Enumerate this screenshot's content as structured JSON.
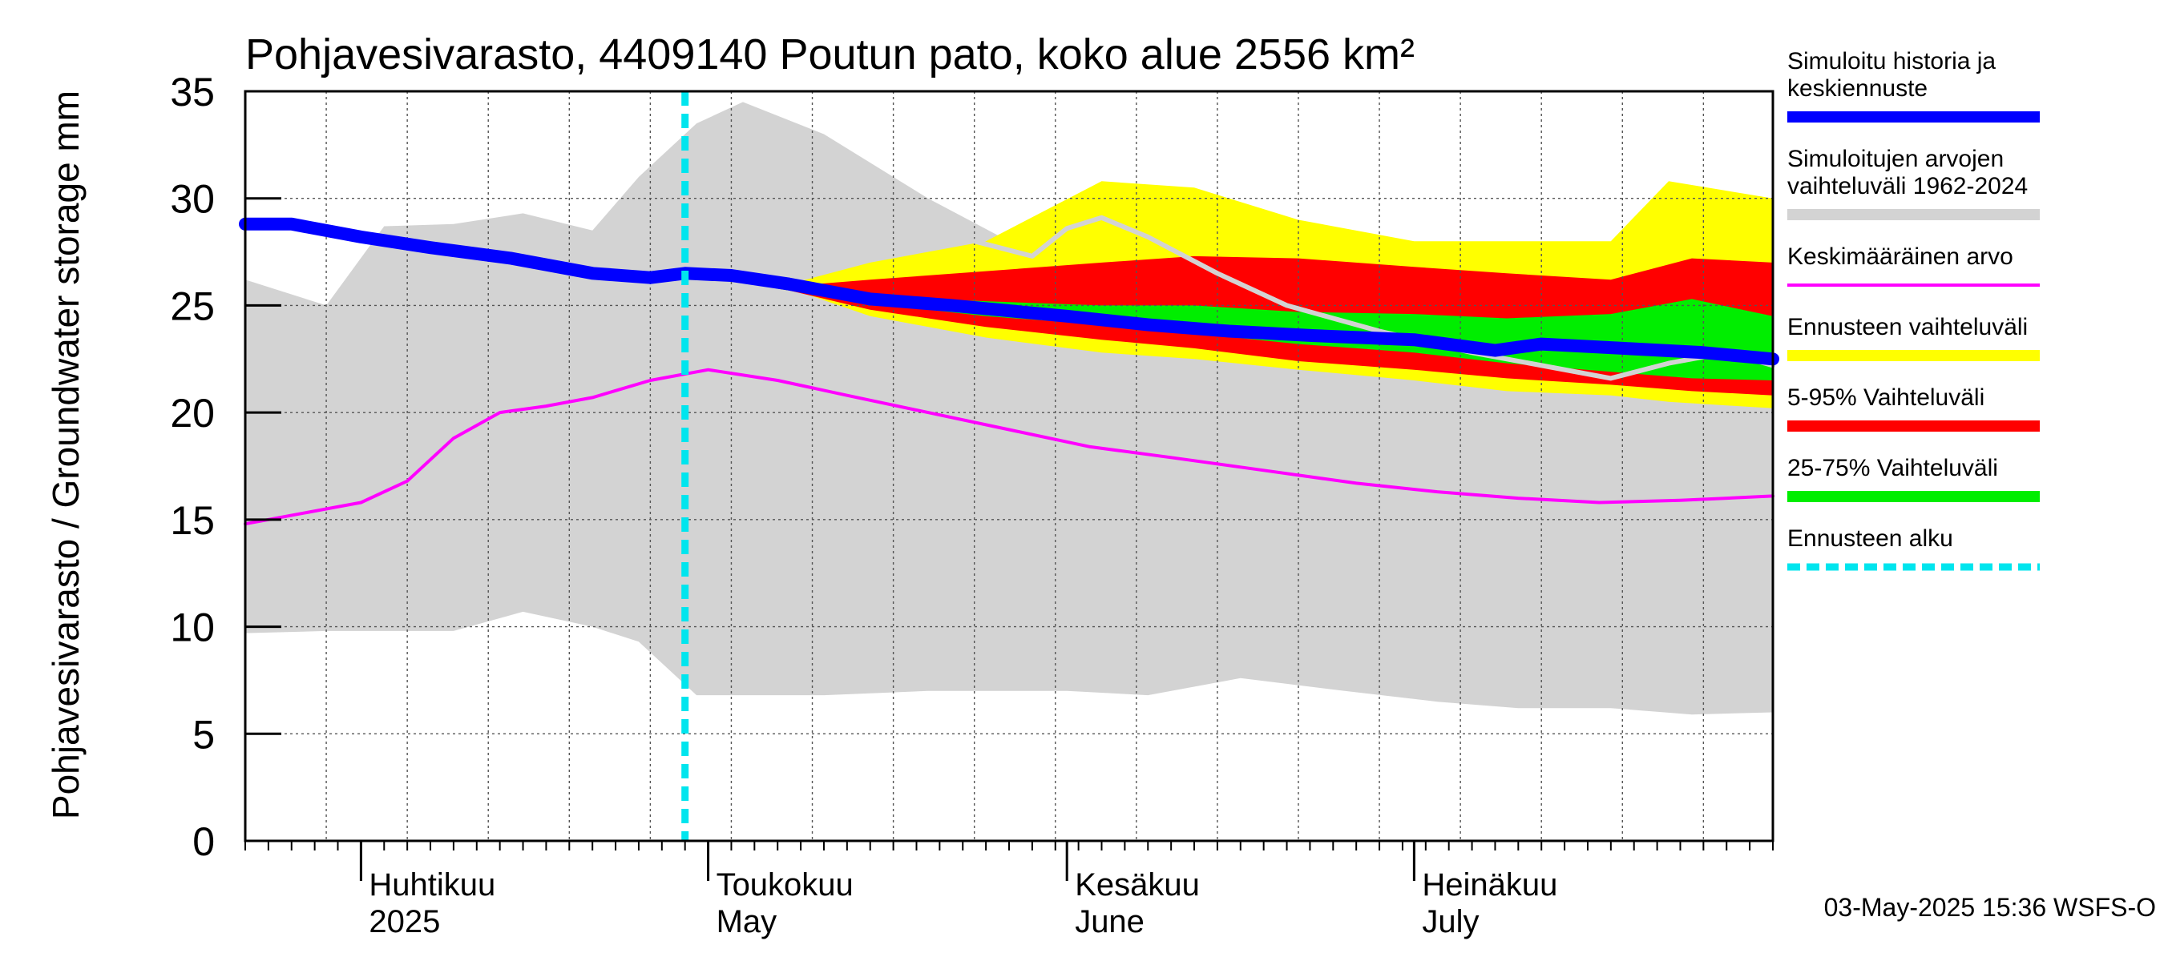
{
  "chart_data": {
    "type": "area",
    "title": "Pohjavesivarasto, 4409140 Poutun pato, koko alue 2556 km²",
    "ylabel": "Pohjavesivarasto / Groundwater storage   mm",
    "ylim": [
      0,
      35
    ],
    "y_ticks": [
      "0",
      "5",
      "10",
      "15",
      "20",
      "25",
      "30",
      "35"
    ],
    "xlim": [
      "2025-03-22",
      "2025-08-01"
    ],
    "grid": true,
    "legend_position": "right",
    "month_labels": [
      {
        "date": "2025-04-01",
        "fi": "Huhtikuu",
        "en": "2025"
      },
      {
        "date": "2025-05-01",
        "fi": "Toukokuu",
        "en": "May"
      },
      {
        "date": "2025-06-01",
        "fi": "Kesäkuu",
        "en": "June"
      },
      {
        "date": "2025-07-01",
        "fi": "Heinäkuu",
        "en": "July"
      }
    ],
    "forecast_start": "2025-04-29",
    "series": [
      {
        "name": "Simuloitujen arvojen vaihteluväli 1962-2024",
        "color": "#d3d3d3",
        "kind": "band",
        "x": [
          "2025-03-22",
          "2025-03-29",
          "2025-04-03",
          "2025-04-09",
          "2025-04-15",
          "2025-04-21",
          "2025-04-25",
          "2025-04-30",
          "2025-05-04",
          "2025-05-11",
          "2025-05-20",
          "2025-05-27",
          "2025-06-01",
          "2025-06-08",
          "2025-06-16",
          "2025-06-25",
          "2025-07-03",
          "2025-07-10",
          "2025-07-18",
          "2025-07-25",
          "2025-08-01"
        ],
        "upper": [
          26.2,
          25.0,
          28.7,
          28.8,
          29.3,
          28.5,
          31.0,
          33.5,
          34.5,
          33.0,
          30.0,
          28.0,
          27.2,
          27.0,
          26.5,
          25.0,
          23.5,
          22.5,
          22.5,
          22.0,
          21.8
        ],
        "lower": [
          9.7,
          9.8,
          9.8,
          9.8,
          10.7,
          10.0,
          9.3,
          6.8,
          6.8,
          6.8,
          7.0,
          7.0,
          7.0,
          6.8,
          7.6,
          7.0,
          6.5,
          6.2,
          6.2,
          5.9,
          6.0
        ]
      },
      {
        "name": "Ennusteen vaihteluväli",
        "color": "#ffff00",
        "kind": "band",
        "x": [
          "2025-04-29",
          "2025-05-08",
          "2025-05-15",
          "2025-05-25",
          "2025-06-04",
          "2025-06-12",
          "2025-06-21",
          "2025-07-01",
          "2025-07-09",
          "2025-07-18",
          "2025-07-23",
          "2025-08-01"
        ],
        "upper": [
          26.7,
          26.0,
          27.0,
          28.0,
          30.8,
          30.5,
          29.0,
          28.0,
          28.0,
          28.0,
          30.8,
          30.0
        ],
        "lower": [
          26.5,
          25.8,
          24.5,
          23.5,
          22.8,
          22.5,
          22.0,
          21.5,
          21.0,
          20.8,
          20.5,
          20.2
        ]
      },
      {
        "name": "5-95% Vaihteluväli",
        "color": "#ff0000",
        "kind": "band",
        "x": [
          "2025-04-29",
          "2025-05-08",
          "2025-05-15",
          "2025-05-25",
          "2025-06-04",
          "2025-06-12",
          "2025-06-21",
          "2025-07-01",
          "2025-07-09",
          "2025-07-18",
          "2025-07-25",
          "2025-08-01"
        ],
        "upper": [
          26.5,
          25.9,
          26.2,
          26.6,
          27.0,
          27.3,
          27.2,
          26.8,
          26.5,
          26.2,
          27.2,
          27.0
        ],
        "lower": [
          26.5,
          25.7,
          24.8,
          24.0,
          23.4,
          23.0,
          22.4,
          22.0,
          21.6,
          21.3,
          21.0,
          20.8
        ]
      },
      {
        "name": "25-75% Vaihteluväli",
        "color": "#00ee00",
        "kind": "band",
        "x": [
          "2025-04-29",
          "2025-05-08",
          "2025-05-15",
          "2025-05-25",
          "2025-06-04",
          "2025-06-12",
          "2025-06-21",
          "2025-07-01",
          "2025-07-09",
          "2025-07-18",
          "2025-07-25",
          "2025-08-01"
        ],
        "upper": [
          26.5,
          25.8,
          25.4,
          25.2,
          25.0,
          25.0,
          24.7,
          24.6,
          24.4,
          24.6,
          25.3,
          24.5
        ],
        "lower": [
          26.5,
          25.7,
          25.1,
          24.5,
          24.1,
          23.7,
          23.2,
          22.8,
          22.3,
          21.9,
          21.6,
          21.5
        ]
      },
      {
        "name": "Keskimääräinen arvo",
        "color": "#ff00ff",
        "kind": "line",
        "x": [
          "2025-03-22",
          "2025-03-27",
          "2025-04-01",
          "2025-04-05",
          "2025-04-09",
          "2025-04-13",
          "2025-04-17",
          "2025-04-21",
          "2025-04-26",
          "2025-05-01",
          "2025-05-07",
          "2025-05-13",
          "2025-05-20",
          "2025-05-27",
          "2025-06-03",
          "2025-06-10",
          "2025-06-18",
          "2025-06-26",
          "2025-07-03",
          "2025-07-10",
          "2025-07-17",
          "2025-07-24",
          "2025-08-01"
        ],
        "values": [
          14.8,
          15.3,
          15.8,
          16.8,
          18.8,
          20.0,
          20.3,
          20.7,
          21.5,
          22.0,
          21.5,
          20.8,
          20.0,
          19.2,
          18.4,
          17.9,
          17.3,
          16.7,
          16.3,
          16.0,
          15.8,
          15.9,
          16.1
        ]
      },
      {
        "name": "Simuloitu historia ja keskiennuste (previous)",
        "color": "#d3d3d3",
        "kind": "line",
        "x": [
          "2025-05-24",
          "2025-05-29",
          "2025-06-01",
          "2025-06-04",
          "2025-06-08",
          "2025-06-14",
          "2025-06-20",
          "2025-06-28",
          "2025-07-06",
          "2025-07-13",
          "2025-07-18",
          "2025-07-23",
          "2025-07-28",
          "2025-08-01"
        ],
        "values": [
          28.0,
          27.3,
          28.6,
          29.1,
          28.2,
          26.5,
          25.0,
          23.8,
          22.8,
          22.1,
          21.6,
          22.3,
          22.8,
          22.2
        ]
      },
      {
        "name": "Simuloitu historia ja keskiennuste",
        "color": "#0000ff",
        "kind": "line",
        "x": [
          "2025-03-22",
          "2025-03-26",
          "2025-04-01",
          "2025-04-07",
          "2025-04-14",
          "2025-04-21",
          "2025-04-26",
          "2025-04-29",
          "2025-05-03",
          "2025-05-08",
          "2025-05-15",
          "2025-05-22",
          "2025-06-01",
          "2025-06-08",
          "2025-06-15",
          "2025-06-22",
          "2025-07-01",
          "2025-07-08",
          "2025-07-12",
          "2025-07-19",
          "2025-07-26",
          "2025-08-01"
        ],
        "values": [
          28.8,
          28.8,
          28.2,
          27.7,
          27.2,
          26.5,
          26.3,
          26.5,
          26.4,
          26.0,
          25.3,
          25.0,
          24.5,
          24.1,
          23.8,
          23.6,
          23.4,
          22.9,
          23.2,
          23.0,
          22.8,
          22.5
        ]
      }
    ]
  },
  "legend": [
    {
      "lines": [
        "Simuloitu historia ja",
        "keskiennuste"
      ],
      "color": "#0000ff",
      "style": "thick"
    },
    {
      "lines": [
        "Simuloitujen arvojen",
        "vaihteluväli 1962-2024"
      ],
      "color": "#d3d3d3",
      "style": "thick"
    },
    {
      "lines": [
        "Keskimääräinen arvo"
      ],
      "color": "#ff00ff",
      "style": "thin"
    },
    {
      "lines": [
        "Ennusteen vaihteluväli"
      ],
      "color": "#ffff00",
      "style": "thick"
    },
    {
      "lines": [
        "5-95% Vaihteluväli"
      ],
      "color": "#ff0000",
      "style": "thick"
    },
    {
      "lines": [
        "25-75% Vaihteluväli"
      ],
      "color": "#00ee00",
      "style": "thick"
    },
    {
      "lines": [
        "Ennusteen alku"
      ],
      "color": "#00e5ee",
      "style": "dashed"
    }
  ],
  "footer": "03-May-2025 15:36 WSFS-O"
}
